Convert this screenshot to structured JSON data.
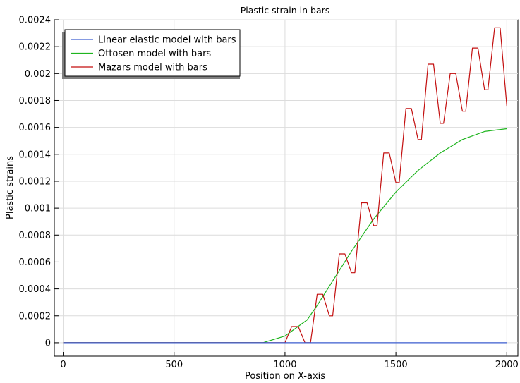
{
  "chart_data": {
    "type": "line",
    "title": "Plastic strain in bars",
    "xlabel": "Position on X-axis",
    "ylabel": "Plastic strains",
    "xlim": [
      -40,
      2050
    ],
    "ylim": [
      -0.0001,
      0.0024
    ],
    "x_ticks": [
      0,
      500,
      1000,
      1500,
      2000
    ],
    "x_tick_labels": [
      "0",
      "500",
      "1000",
      "1500",
      "2000"
    ],
    "y_ticks": [
      0,
      0.0002,
      0.0004,
      0.0006,
      0.0008,
      0.001,
      0.0012,
      0.0014,
      0.0016,
      0.0018,
      0.002,
      0.0022,
      0.0024
    ],
    "y_tick_labels": [
      "0",
      "0.0002",
      "0.0004",
      "0.0006",
      "0.0008",
      "0.001",
      "0.0012",
      "0.0014",
      "0.0016",
      "0.0018",
      "0.002",
      "0.0022",
      "0.0024"
    ],
    "grid": true,
    "legend_position": "top-left",
    "series": [
      {
        "name": "Linear elastic model with bars",
        "color": "#3d5fd1",
        "x": [
          0,
          2000
        ],
        "y": [
          0,
          0
        ]
      },
      {
        "name": "Ottosen model with bars",
        "color": "#1fb51f",
        "x": [
          0,
          900,
          1000,
          1100,
          1150,
          1200,
          1300,
          1400,
          1500,
          1600,
          1700,
          1800,
          1900,
          2000
        ],
        "y": [
          0,
          0,
          5e-05,
          0.00017,
          0.00029,
          0.00042,
          0.00068,
          0.00092,
          0.00112,
          0.00128,
          0.00141,
          0.00151,
          0.00157,
          0.00159
        ]
      },
      {
        "name": "Mazars model with bars",
        "color": "#c30f0f",
        "x": [
          0,
          950,
          1000,
          1030,
          1060,
          1090,
          1115,
          1145,
          1170,
          1200,
          1215,
          1245,
          1270,
          1300,
          1315,
          1345,
          1370,
          1400,
          1415,
          1445,
          1470,
          1500,
          1515,
          1545,
          1570,
          1600,
          1615,
          1645,
          1670,
          1700,
          1715,
          1745,
          1770,
          1800,
          1815,
          1845,
          1870,
          1900,
          1915,
          1945,
          1970,
          2000
        ],
        "y": [
          0,
          0,
          0,
          0.00012,
          0.00012,
          0,
          0,
          0.00036,
          0.00036,
          0.0002,
          0.0002,
          0.00066,
          0.00066,
          0.00052,
          0.00052,
          0.00104,
          0.00104,
          0.00087,
          0.00087,
          0.00141,
          0.00141,
          0.00119,
          0.00119,
          0.00174,
          0.00174,
          0.00151,
          0.00151,
          0.00207,
          0.00207,
          0.00163,
          0.00163,
          0.002,
          0.002,
          0.00172,
          0.00172,
          0.00219,
          0.00219,
          0.00188,
          0.00188,
          0.00234,
          0.00234,
          0.00176
        ]
      }
    ]
  }
}
